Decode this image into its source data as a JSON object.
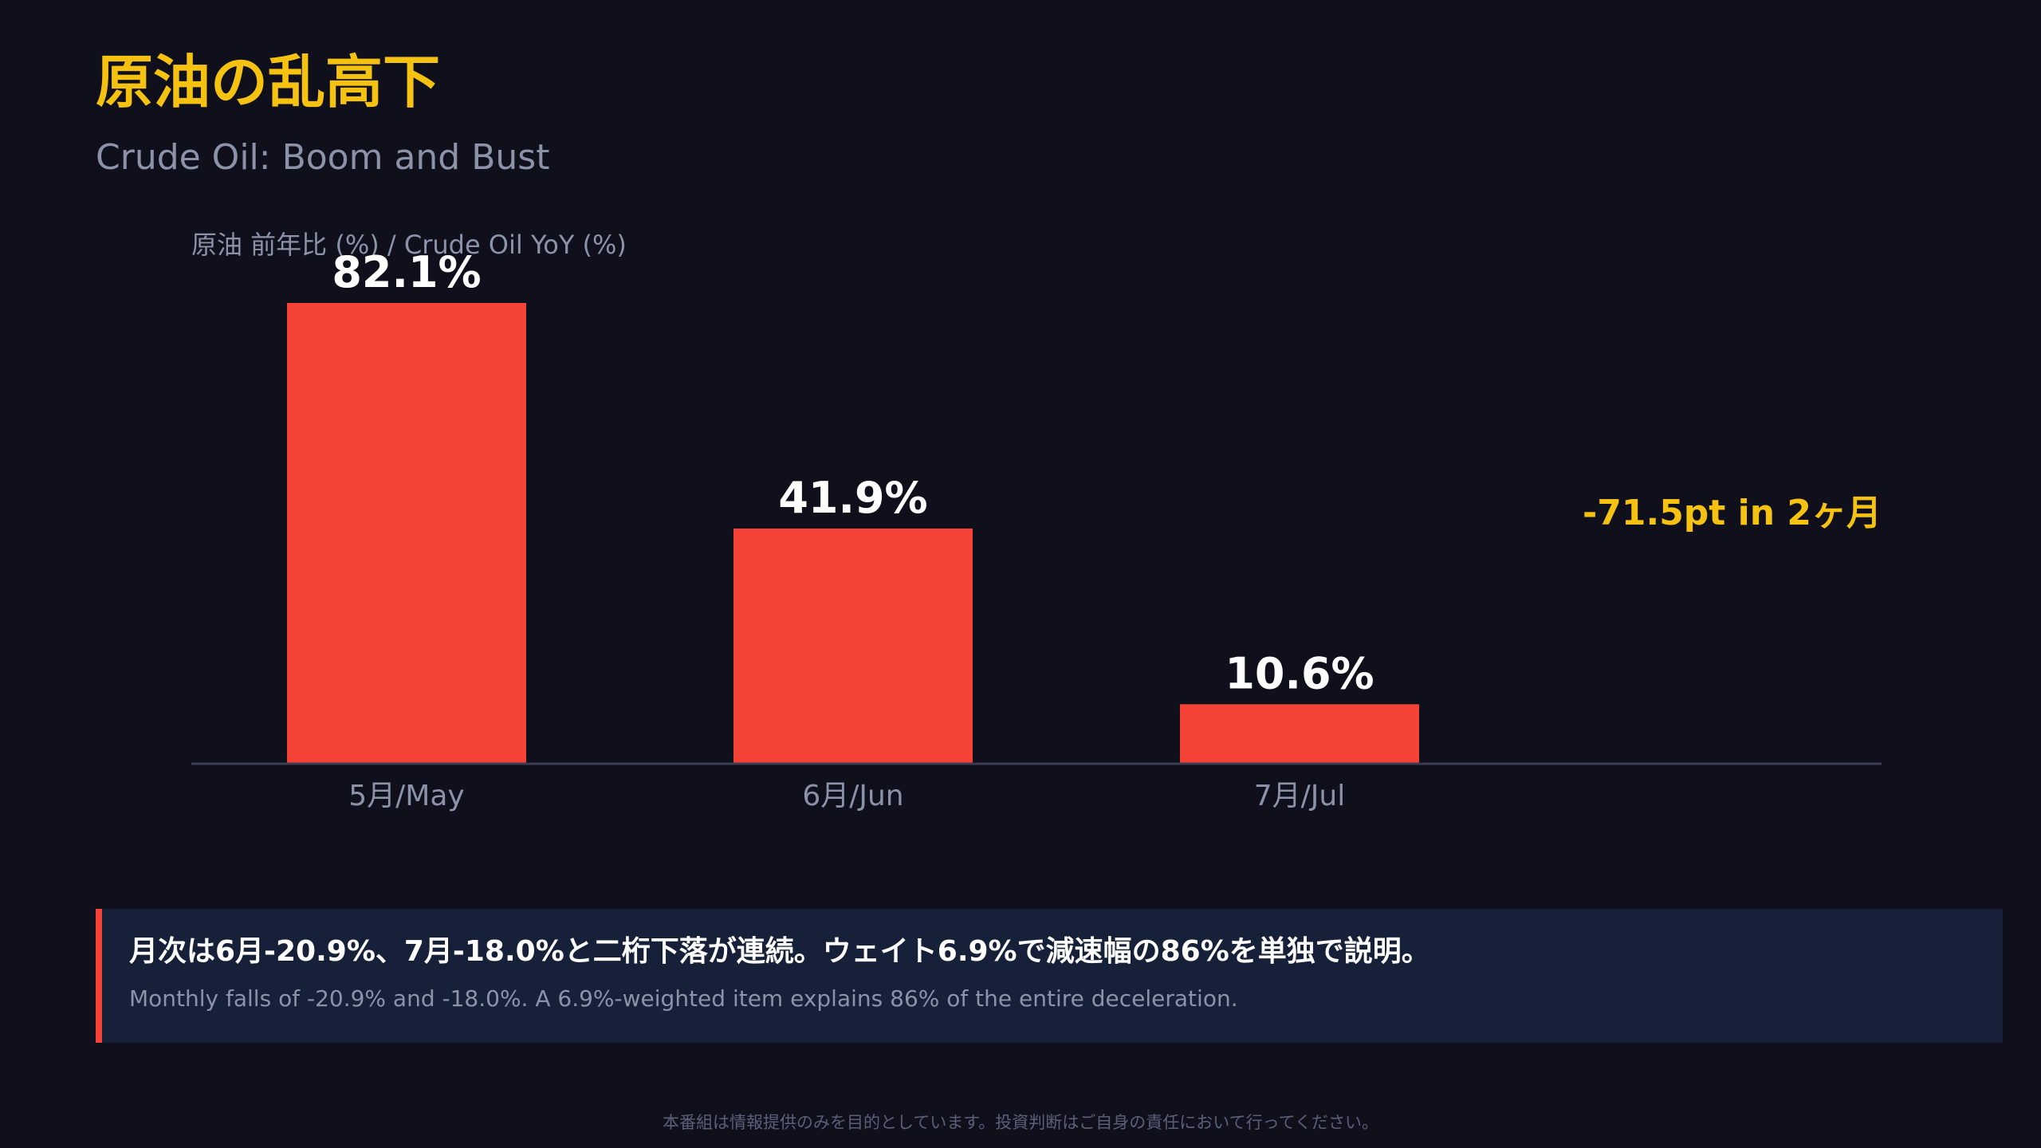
{
  "header": {
    "title": "原油の乱高下",
    "subtitle": "Crude Oil: Boom and Bust"
  },
  "chart_data": {
    "type": "bar",
    "ylabel": "原油 前年比 (%) / Crude Oil YoY (%)",
    "categories": [
      "5月/May",
      "6月/Jun",
      "7月/Jul"
    ],
    "values": [
      82.1,
      41.9,
      10.6
    ],
    "data_labels": [
      "82.1%",
      "41.9%",
      "10.6%"
    ],
    "ylim": [
      0,
      82.1
    ],
    "annotation": "-71.5pt in 2ヶ月",
    "grid": false,
    "legend": "none"
  },
  "callout": {
    "main": "月次は6月-20.9%、7月-18.0%と二桁下落が連続。ウェイト6.9%で減速幅の86%を単独で説明。",
    "sub": "Monthly falls of -20.9% and -18.0%. A 6.9%-weighted item explains 86% of the entire deceleration."
  },
  "footer": {
    "disclaimer": "本番組は情報提供のみを目的としています。投資判断はご自身の責任において行ってください。"
  },
  "colors": {
    "background": "#0f101c",
    "title": "#f5c211",
    "bar": "#f44336",
    "annotation": "#f5c211",
    "callout_bg": "#162038",
    "callout_accent": "#f44336",
    "muted_text": "#8c93a8",
    "axis_line": "#3a3d52"
  }
}
